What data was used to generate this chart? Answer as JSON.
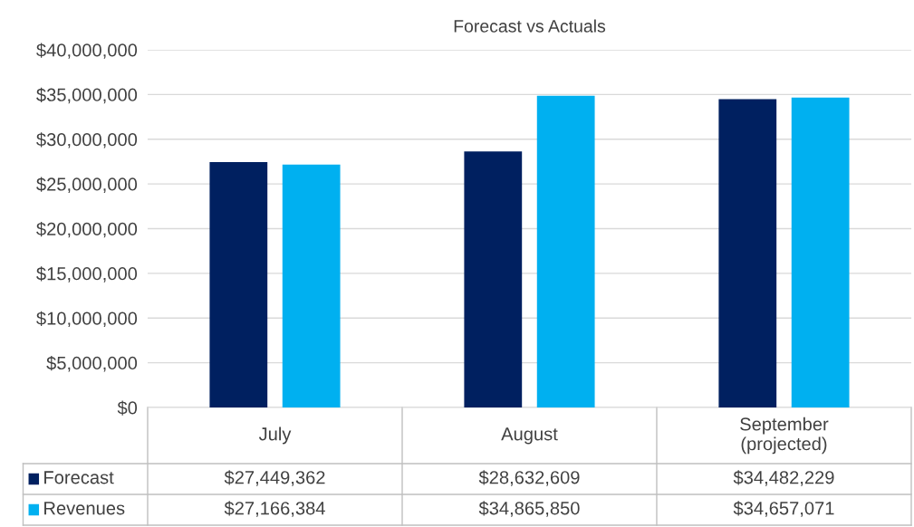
{
  "chart_data": {
    "type": "bar",
    "title": "Forecast vs Actuals",
    "categories": [
      "July",
      "August",
      "September\n(projected)"
    ],
    "series": [
      {
        "name": "Forecast",
        "color": "#002060",
        "values": [
          27449362,
          28632609,
          34482229
        ],
        "value_labels": [
          "$27,449,362",
          "$28,632,609",
          "$34,482,229"
        ]
      },
      {
        "name": "Revenues",
        "color": "#00b0f0",
        "values": [
          27166384,
          34865850,
          34657071
        ],
        "value_labels": [
          "$27,166,384",
          "$34,865,850",
          "$34,657,071"
        ]
      }
    ],
    "ylim": [
      0,
      40000000
    ],
    "yticks": [
      {
        "value": 0,
        "label": "$0"
      },
      {
        "value": 5000000,
        "label": "$5,000,000"
      },
      {
        "value": 10000000,
        "label": "$10,000,000"
      },
      {
        "value": 15000000,
        "label": "$15,000,000"
      },
      {
        "value": 20000000,
        "label": "$20,000,000"
      },
      {
        "value": 25000000,
        "label": "$25,000,000"
      },
      {
        "value": 30000000,
        "label": "$30,000,000"
      },
      {
        "value": 35000000,
        "label": "$35,000,000"
      },
      {
        "value": 40000000,
        "label": "$40,000,000"
      }
    ],
    "grid": "y",
    "legend": "bottom"
  }
}
